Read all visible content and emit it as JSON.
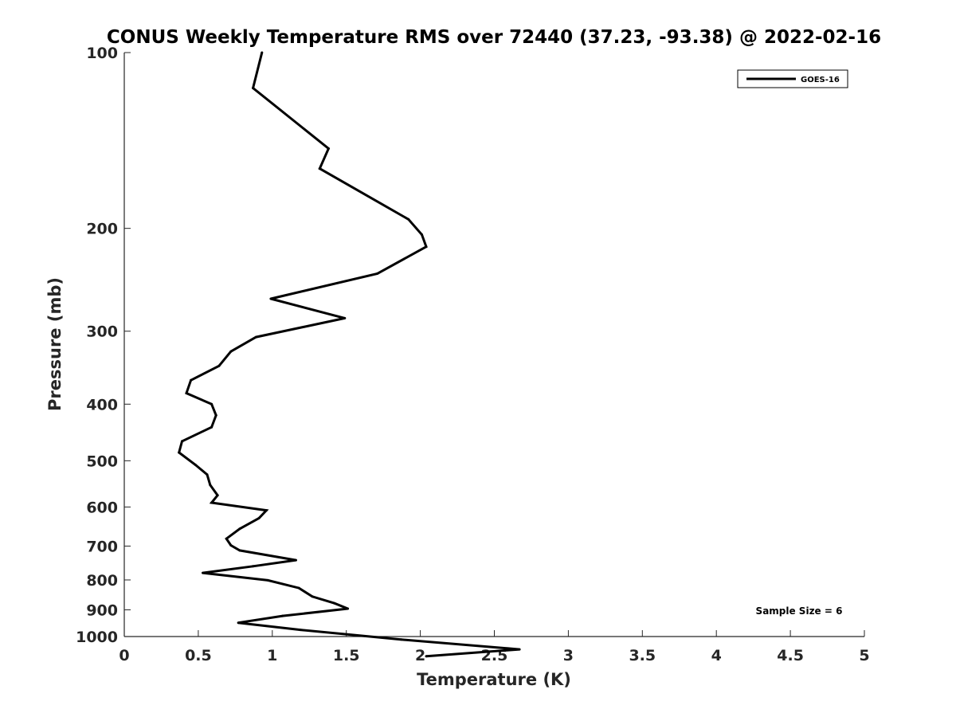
{
  "chart_data": {
    "type": "line",
    "title": "CONUS Weekly Temperature RMS over 72440 (37.23, -93.38) @ 2022-02-16",
    "xlabel": "Temperature (K)",
    "ylabel": "Pressure (mb)",
    "xlim": [
      0,
      5
    ],
    "ylim": [
      100,
      1000
    ],
    "y_scale": "log",
    "y_reversed": true,
    "x_ticks": [
      0,
      0.5,
      1,
      1.5,
      2,
      2.5,
      3,
      3.5,
      4,
      4.5,
      5
    ],
    "x_tick_labels": [
      "0",
      "0.5",
      "1",
      "1.5",
      "2",
      "2.5",
      "3",
      "3.5",
      "4",
      "4.5",
      "5"
    ],
    "y_ticks": [
      100,
      200,
      300,
      400,
      500,
      600,
      700,
      800,
      900,
      1000
    ],
    "y_tick_labels": [
      "100",
      "200",
      "300",
      "400",
      "500",
      "600",
      "700",
      "800",
      "900",
      "1000"
    ],
    "grid": false,
    "legend_position": "top-right",
    "line_color": "#000000",
    "annotation": "Sample Size = 6",
    "series": [
      {
        "name": "GOES-16",
        "x": [
          0.93,
          0.87,
          1.38,
          1.32,
          1.92,
          2.01,
          2.04,
          1.71,
          0.99,
          1.49,
          0.89,
          0.72,
          0.64,
          0.45,
          0.42,
          0.59,
          0.62,
          0.59,
          0.39,
          0.37,
          0.48,
          0.56,
          0.58,
          0.63,
          0.59,
          0.96,
          0.91,
          0.78,
          0.69,
          0.72,
          0.78,
          1.16,
          0.87,
          0.53,
          0.97,
          1.18,
          1.27,
          1.42,
          1.51,
          1.07,
          0.77,
          1.19,
          1.87,
          2.67,
          2.04
        ],
        "y": [
          100,
          115,
          146,
          158,
          193,
          205,
          215,
          239,
          264,
          285,
          307,
          325,
          344,
          364,
          383,
          400,
          418,
          438,
          463,
          484,
          508,
          528,
          550,
          573,
          590,
          608,
          627,
          654,
          680,
          698,
          712,
          740,
          758,
          778,
          801,
          826,
          854,
          877,
          896,
          922,
          947,
          974,
          1012,
          1052,
          1081
        ]
      }
    ]
  }
}
